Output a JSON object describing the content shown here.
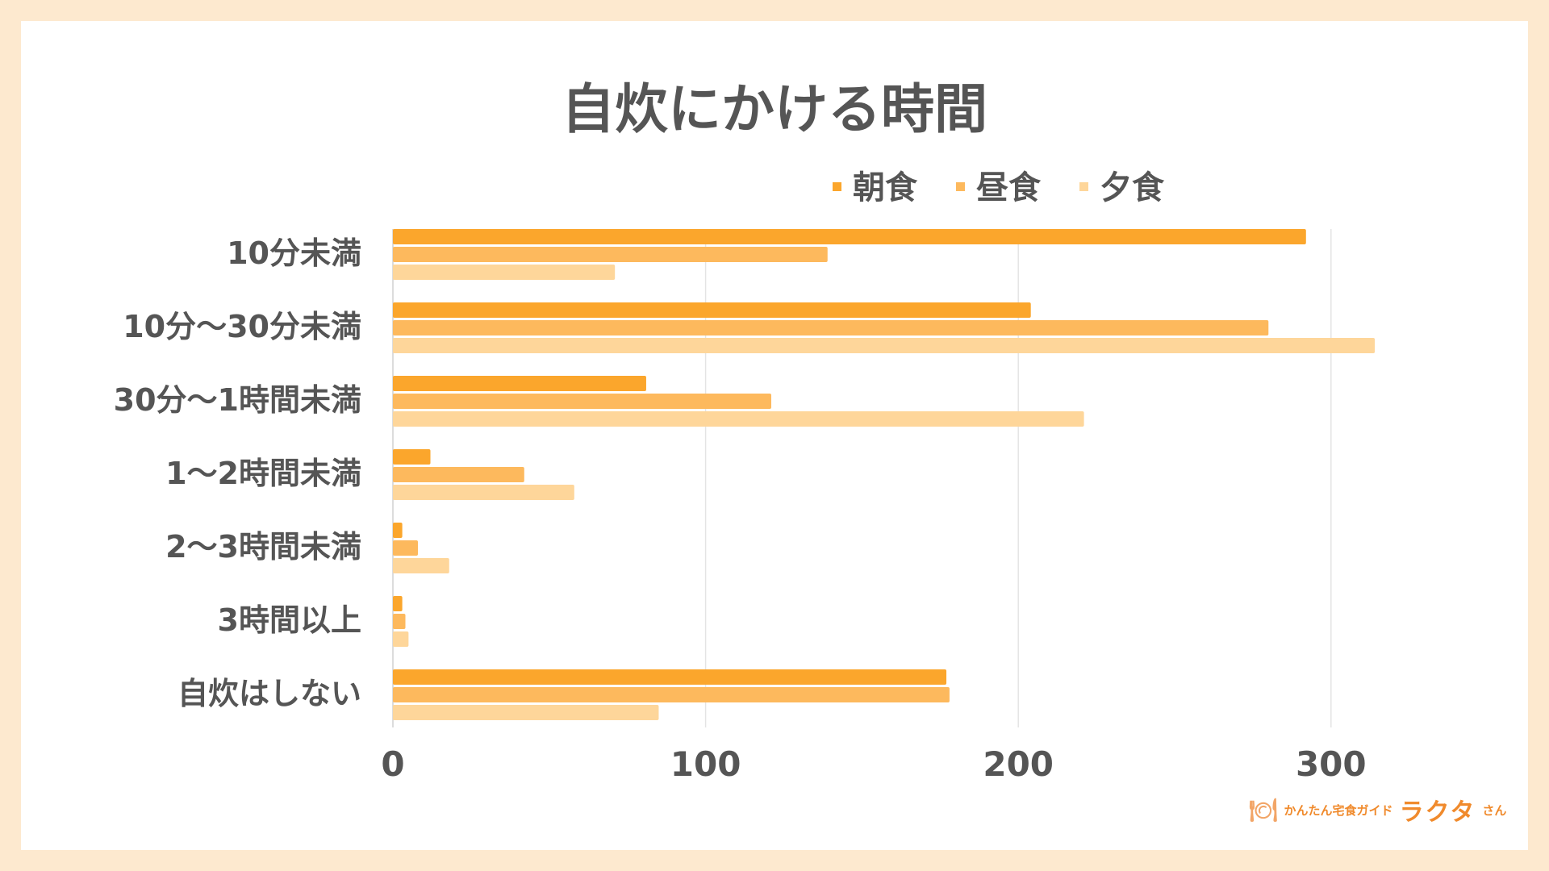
{
  "chart_data": {
    "type": "bar",
    "orientation": "horizontal",
    "title": "自炊にかける時間",
    "categories": [
      "10分未満",
      "10分〜30分未満",
      "30分〜1時間未満",
      "1〜2時間未満",
      "2〜3時間未満",
      "3時間以上",
      "自炊はしない"
    ],
    "series": [
      {
        "name": "朝食",
        "color": "#fba62c",
        "values": [
          292,
          204,
          81,
          12,
          3,
          3,
          177
        ]
      },
      {
        "name": "昼食",
        "color": "#fdb95d",
        "values": [
          139,
          280,
          121,
          42,
          8,
          4,
          178
        ]
      },
      {
        "name": "夕食",
        "color": "#fed69a",
        "values": [
          71,
          314,
          221,
          58,
          18,
          5,
          85
        ]
      }
    ],
    "xlim": [
      0,
      350
    ],
    "xticks": [
      "0",
      "100",
      "200",
      "300"
    ],
    "xtick_values": [
      0,
      100,
      200,
      300
    ],
    "grid": true,
    "legend": "top-right",
    "xlabel": "",
    "ylabel": ""
  },
  "logo": {
    "tagline": "かんたん宅食ガイド",
    "name": "ラクタ",
    "suffix": "さん"
  }
}
